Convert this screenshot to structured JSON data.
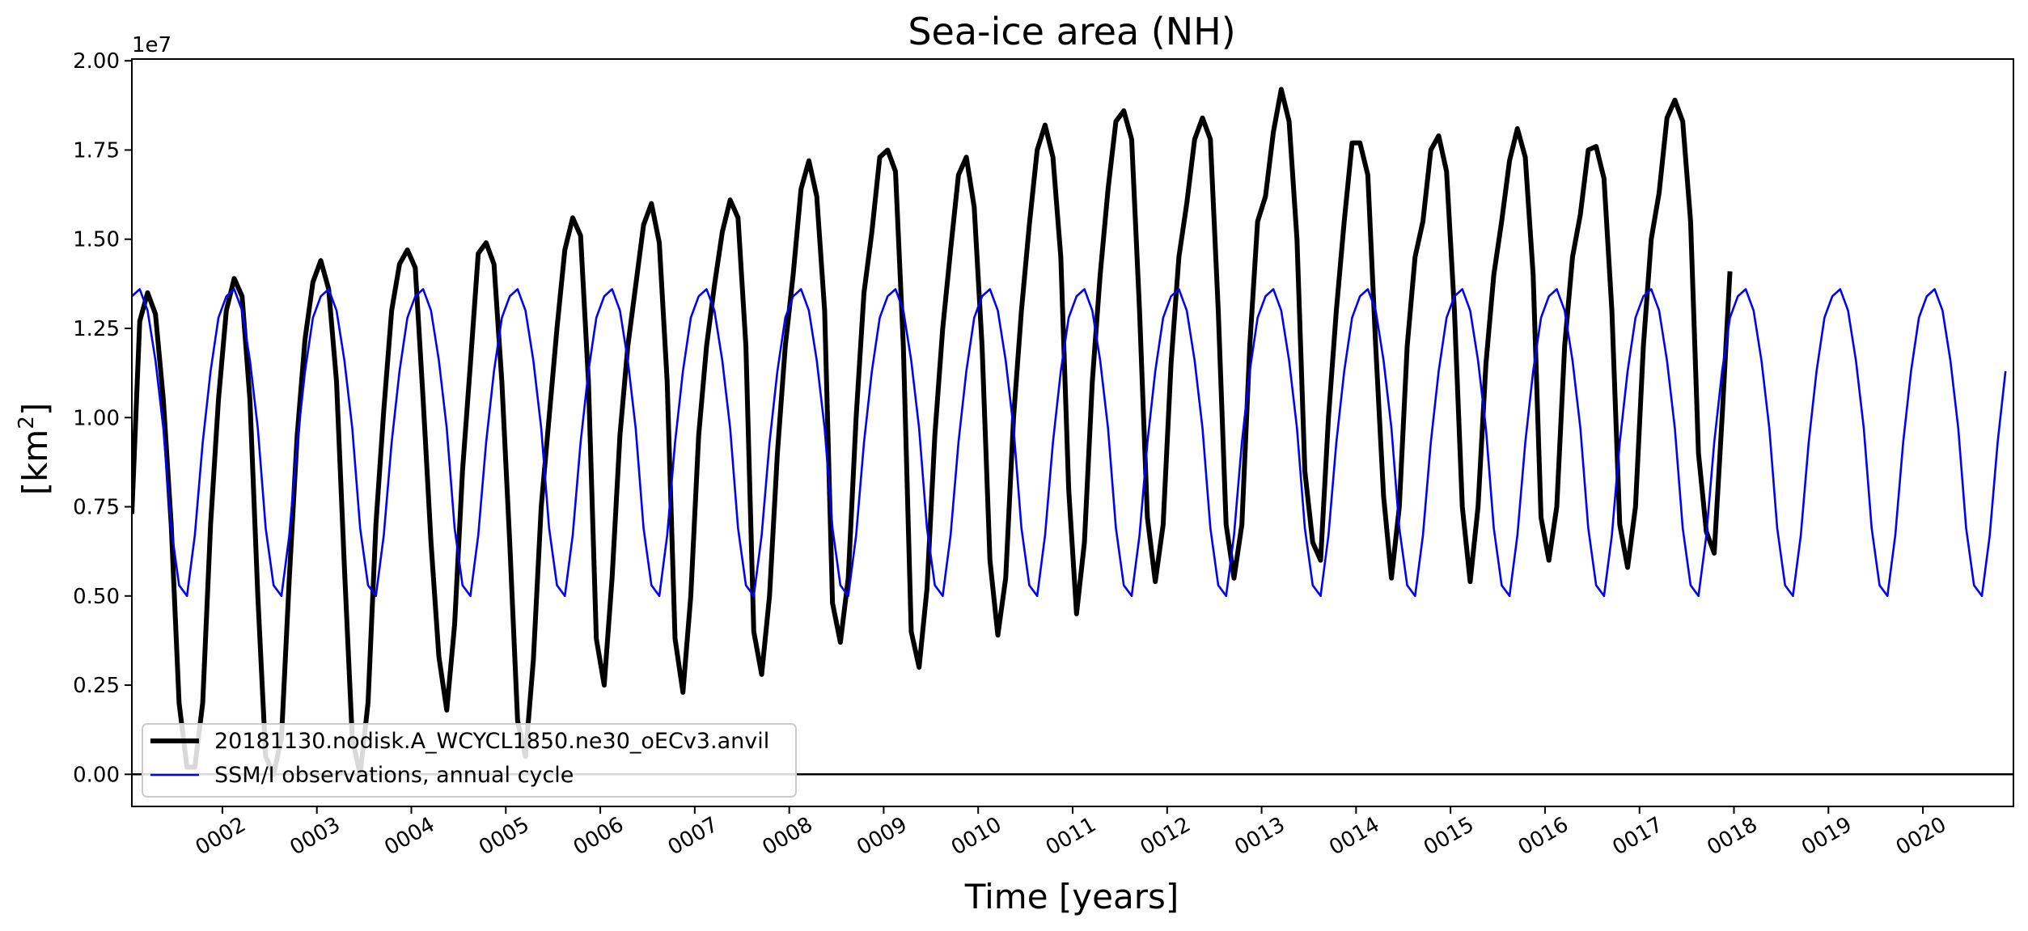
{
  "chart_data": {
    "type": "line",
    "title": "Sea-ice area (NH)",
    "xlabel": "Time [years]",
    "ylabel": "[km",
    "ylabel_sup": "2",
    "ylabel_close": "]",
    "y_offset_text": "1e7",
    "y_scale": 10000000,
    "ylim": [
      -0.09,
      2.005
    ],
    "xlim": [
      1.0417,
      20.9583
    ],
    "x_unit": "years (monthly samples)",
    "yticks": [
      0.0,
      0.25,
      0.5,
      0.75,
      1.0,
      1.25,
      1.5,
      1.75,
      2.0
    ],
    "ytick_labels": [
      "0.00",
      "0.25",
      "0.50",
      "0.75",
      "1.00",
      "1.25",
      "1.50",
      "1.75",
      "2.00"
    ],
    "xticks": [
      2,
      3,
      4,
      5,
      6,
      7,
      8,
      9,
      10,
      11,
      12,
      13,
      14,
      15,
      16,
      17,
      18,
      19,
      20
    ],
    "xtick_labels": [
      "0002",
      "0003",
      "0004",
      "0005",
      "0006",
      "0007",
      "0008",
      "0009",
      "0010",
      "0011",
      "0012",
      "0013",
      "0014",
      "0015",
      "0016",
      "0017",
      "0018",
      "0019",
      "0020"
    ],
    "hline_y": 0.0,
    "grid": false,
    "legend_position": "lower-left",
    "series": [
      {
        "name": "20181130.nodisk.A_WCYCL1850.ne30_oECv3.anvil",
        "color": "#000000",
        "style": "thick",
        "x_start": 1.0417,
        "x_step": 0.08333,
        "values": [
          0.73,
          1.27,
          1.35,
          1.29,
          1.05,
          0.7,
          0.2,
          0.02,
          0.02,
          0.2,
          0.7,
          1.05,
          1.3,
          1.39,
          1.34,
          1.05,
          0.5,
          0.05,
          0.0,
          0.1,
          0.55,
          0.95,
          1.22,
          1.38,
          1.44,
          1.36,
          1.1,
          0.58,
          0.1,
          0.0,
          0.2,
          0.7,
          1.02,
          1.3,
          1.43,
          1.47,
          1.42,
          1.05,
          0.65,
          0.33,
          0.18,
          0.42,
          0.85,
          1.15,
          1.46,
          1.49,
          1.43,
          1.1,
          0.65,
          0.15,
          0.05,
          0.32,
          0.75,
          1.0,
          1.25,
          1.47,
          1.56,
          1.51,
          1.1,
          0.38,
          0.25,
          0.55,
          0.95,
          1.2,
          1.37,
          1.54,
          1.6,
          1.49,
          1.1,
          0.38,
          0.23,
          0.5,
          0.95,
          1.2,
          1.37,
          1.52,
          1.61,
          1.56,
          1.2,
          0.4,
          0.28,
          0.5,
          0.9,
          1.2,
          1.4,
          1.64,
          1.72,
          1.62,
          1.3,
          0.48,
          0.37,
          0.55,
          1.0,
          1.35,
          1.52,
          1.73,
          1.75,
          1.69,
          1.2,
          0.4,
          0.3,
          0.52,
          0.95,
          1.25,
          1.47,
          1.68,
          1.73,
          1.59,
          1.2,
          0.6,
          0.39,
          0.55,
          1.0,
          1.3,
          1.54,
          1.75,
          1.82,
          1.73,
          1.45,
          0.8,
          0.45,
          0.65,
          1.1,
          1.4,
          1.64,
          1.83,
          1.86,
          1.78,
          1.3,
          0.72,
          0.54,
          0.7,
          1.15,
          1.45,
          1.6,
          1.78,
          1.84,
          1.78,
          1.3,
          0.7,
          0.55,
          0.7,
          1.2,
          1.55,
          1.62,
          1.8,
          1.92,
          1.83,
          1.5,
          0.85,
          0.65,
          0.6,
          1.0,
          1.3,
          1.55,
          1.77,
          1.77,
          1.68,
          1.2,
          0.78,
          0.55,
          0.75,
          1.2,
          1.45,
          1.55,
          1.75,
          1.79,
          1.69,
          1.3,
          0.75,
          0.54,
          0.75,
          1.15,
          1.4,
          1.55,
          1.72,
          1.81,
          1.73,
          1.4,
          0.72,
          0.6,
          0.75,
          1.2,
          1.45,
          1.57,
          1.75,
          1.76,
          1.67,
          1.3,
          0.7,
          0.58,
          0.75,
          1.2,
          1.5,
          1.63,
          1.84,
          1.89,
          1.83,
          1.55,
          0.9,
          0.68,
          0.62,
          1.0,
          1.41
        ]
      },
      {
        "name": "SSM/I observations, annual cycle",
        "color": "#0000ff",
        "style": "thin",
        "x_start": 1.0417,
        "x_step": 0.08333,
        "annual_cycle": [
          1.34,
          1.36,
          1.3,
          1.16,
          0.97,
          0.69,
          0.53,
          0.5,
          0.67,
          0.93,
          1.13,
          1.28
        ],
        "cycles": 19.92
      }
    ]
  }
}
